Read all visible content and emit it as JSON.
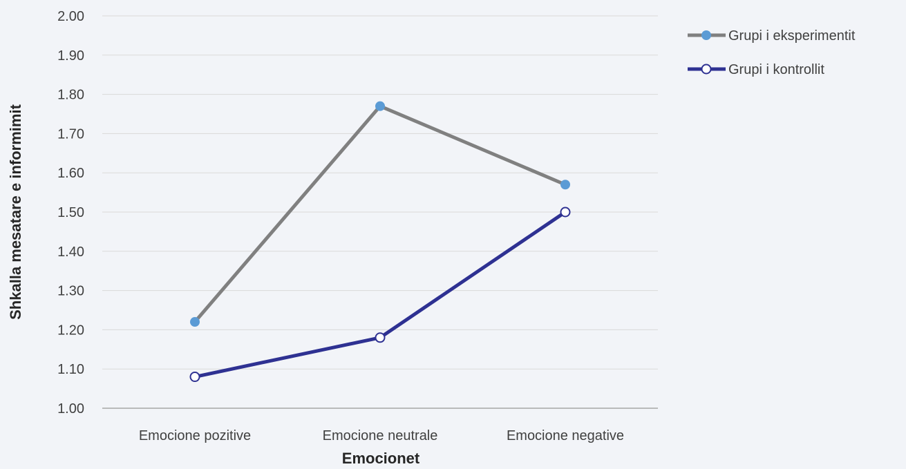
{
  "chart_data": {
    "type": "line",
    "title": "",
    "xlabel": "Emocionet",
    "ylabel": "Shkalla mesatare e informimit",
    "categories": [
      "Emocione pozitive",
      "Emocione neutrale",
      "Emocione negative"
    ],
    "ylim": [
      1.0,
      2.0
    ],
    "yticks": [
      "1.00",
      "1.10",
      "1.20",
      "1.30",
      "1.40",
      "1.50",
      "1.60",
      "1.70",
      "1.80",
      "1.90",
      "2.00"
    ],
    "grid": true,
    "legend_position": "top-right",
    "series": [
      {
        "name": "Grupi i eksperimentit",
        "values": [
          1.22,
          1.77,
          1.57
        ],
        "line_color": "#808080",
        "marker_color": "#5b9bd5",
        "marker": "filled-circle"
      },
      {
        "name": "Grupi i kontrollit",
        "values": [
          1.08,
          1.18,
          1.5
        ],
        "line_color": "#2e3192",
        "marker_color": "#2e3192",
        "marker": "hollow-circle"
      }
    ]
  }
}
